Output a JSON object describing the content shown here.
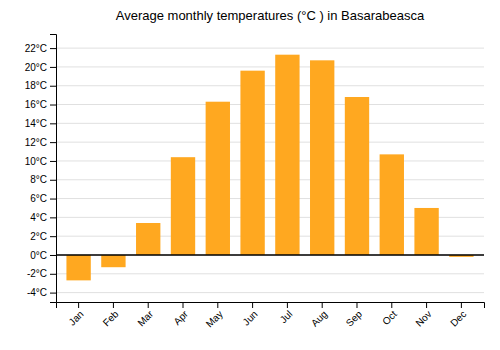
{
  "chart_data": {
    "type": "bar",
    "title": "Average monthly temperatures (°C ) in Basarabeasca",
    "categories": [
      "Jan",
      "Feb",
      "Mar",
      "Apr",
      "May",
      "Jun",
      "Jul",
      "Aug",
      "Sep",
      "Oct",
      "Nov",
      "Dec"
    ],
    "values": [
      -2.7,
      -1.3,
      3.4,
      10.4,
      16.3,
      19.6,
      21.3,
      20.7,
      16.8,
      10.7,
      5.0,
      -0.2
    ],
    "color": "#FFA820",
    "ylim": [
      -5.0,
      23.5
    ],
    "yticks": [
      {
        "value": -4,
        "label": "-4°C"
      },
      {
        "value": -2,
        "label": "-2°C"
      },
      {
        "value": 0,
        "label": "0°C"
      },
      {
        "value": 2,
        "label": "2°C"
      },
      {
        "value": 4,
        "label": "4°C"
      },
      {
        "value": 6,
        "label": "6°C"
      },
      {
        "value": 8,
        "label": "8°C"
      },
      {
        "value": 10,
        "label": "10°C"
      },
      {
        "value": 12,
        "label": "12°C"
      },
      {
        "value": 14,
        "label": "14°C"
      },
      {
        "value": 16,
        "label": "16°C"
      },
      {
        "value": 18,
        "label": "18°C"
      },
      {
        "value": 20,
        "label": "20°C"
      },
      {
        "value": 22,
        "label": "22°C"
      }
    ],
    "grid": true
  }
}
